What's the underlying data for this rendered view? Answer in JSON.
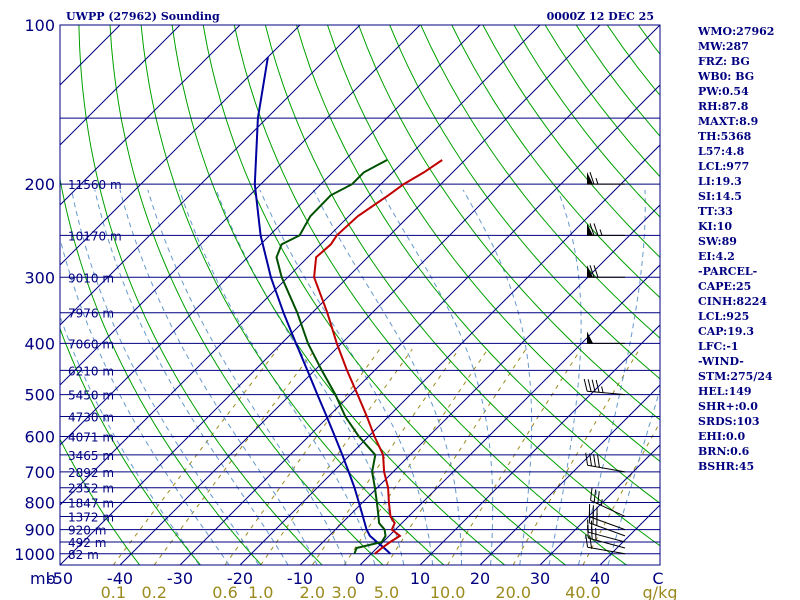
{
  "header": {
    "station_title": "UWPP (27962) Sounding",
    "time_title": "0000Z 12 DEC 25"
  },
  "indices": [
    "WMO:27962",
    "MW:287",
    "FRZ: BG",
    "WB0: BG",
    "PW:0.54",
    "RH:87.8",
    "MAXT:8.9",
    "TH:5368",
    "L57:4.8",
    "LCL:977",
    "LI:19.3",
    "SI:14.5",
    "TT:33",
    "KI:10",
    "SW:89",
    "EI:4.2",
    "-PARCEL-",
    "CAPE:25",
    "CINH:8224",
    "LCL:925",
    "CAP:19.3",
    "LFC:-1",
    "-WIND-",
    "STM:275/24",
    "HEL:149",
    "SHR+:0.0",
    "SRDS:103",
    "EHI:0.0",
    "BRN:0.6",
    "BSHR:45"
  ],
  "colors": {
    "frame": "#000080",
    "isobar": "#000080",
    "isotherm": "#000080",
    "dry_adiabat": "#00a000",
    "moist_adiabat": "#6699cc",
    "mixing_ratio": "#9b8a1e",
    "temperature": "#c00000",
    "dewpoint": "#005000",
    "parcel": "#0000a0",
    "wind_barb": "#000000"
  },
  "chart_data": {
    "type": "skew-t",
    "pressure_unit_label": "mb",
    "pressure_ticks": [
      "100",
      "200",
      "300",
      "400",
      "500",
      "600",
      "700",
      "800",
      "900",
      "1000"
    ],
    "height_labels": [
      {
        "p": 200,
        "label": "11560 m"
      },
      {
        "p": 250,
        "label": "10170 m"
      },
      {
        "p": 300,
        "label": "9010 m"
      },
      {
        "p": 350,
        "label": "7976 m"
      },
      {
        "p": 400,
        "label": "7060 m"
      },
      {
        "p": 450,
        "label": "6210 m"
      },
      {
        "p": 500,
        "label": "5450 m"
      },
      {
        "p": 550,
        "label": "4730 m"
      },
      {
        "p": 600,
        "label": "4071 m"
      },
      {
        "p": 650,
        "label": "3465 m"
      },
      {
        "p": 700,
        "label": "2892 m"
      },
      {
        "p": 750,
        "label": "2352 m"
      },
      {
        "p": 800,
        "label": "1847 m"
      },
      {
        "p": 850,
        "label": "1372 m"
      },
      {
        "p": 900,
        "label": "920 m"
      },
      {
        "p": 950,
        "label": "492 m"
      },
      {
        "p": 1000,
        "label": "82 m"
      }
    ],
    "temperature_ticks": [
      "-50",
      "-40",
      "-30",
      "-20",
      "-10",
      "0",
      "10",
      "20",
      "30",
      "40"
    ],
    "temperature_unit_label": "C",
    "mixing_ratio_ticks": [
      {
        "value": 0.1,
        "label": "0.1"
      },
      {
        "value": 0.2,
        "label": "0.2"
      },
      {
        "value": 0.6,
        "label": "0.6"
      },
      {
        "value": 1.0,
        "label": "1.0"
      },
      {
        "value": 2.0,
        "label": "2.0"
      },
      {
        "value": 3.0,
        "label": "3.0"
      },
      {
        "value": 5.0,
        "label": "5.0"
      },
      {
        "value": 10.0,
        "label": "10.0"
      },
      {
        "value": 20.0,
        "label": "20.0"
      },
      {
        "value": 40.0,
        "label": "40.0"
      }
    ],
    "mixing_ratio_unit_label": "g/kg",
    "p_range": [
      100,
      1050
    ],
    "t_range_at_base": [
      -50,
      50
    ],
    "temperature_profile": [
      {
        "p": 1000,
        "t": 0.6
      },
      {
        "p": 975,
        "t": 0.8
      },
      {
        "p": 950,
        "t": 1.2
      },
      {
        "p": 925,
        "t": 1.8
      },
      {
        "p": 900,
        "t": -0.6
      },
      {
        "p": 875,
        "t": -1.2
      },
      {
        "p": 850,
        "t": -3.0
      },
      {
        "p": 800,
        "t": -5.6
      },
      {
        "p": 750,
        "t": -8.2
      },
      {
        "p": 700,
        "t": -11.5
      },
      {
        "p": 650,
        "t": -14.5
      },
      {
        "p": 600,
        "t": -19.0
      },
      {
        "p": 550,
        "t": -23.6
      },
      {
        "p": 500,
        "t": -28.8
      },
      {
        "p": 450,
        "t": -34.6
      },
      {
        "p": 400,
        "t": -40.8
      },
      {
        "p": 350,
        "t": -47.5
      },
      {
        "p": 300,
        "t": -55.6
      },
      {
        "p": 275,
        "t": -58.6
      },
      {
        "p": 260,
        "t": -58.3
      },
      {
        "p": 250,
        "t": -58.8
      },
      {
        "p": 230,
        "t": -58.5
      },
      {
        "p": 210,
        "t": -56.9
      },
      {
        "p": 200,
        "t": -56.2
      },
      {
        "p": 190,
        "t": -54.8
      },
      {
        "p": 180,
        "t": -53.8
      }
    ],
    "dewpoint_profile": [
      {
        "p": 1000,
        "t": -2.8
      },
      {
        "p": 975,
        "t": -3.4
      },
      {
        "p": 950,
        "t": -0.2
      },
      {
        "p": 925,
        "t": -0.6
      },
      {
        "p": 900,
        "t": -1.8
      },
      {
        "p": 875,
        "t": -3.8
      },
      {
        "p": 850,
        "t": -5.0
      },
      {
        "p": 800,
        "t": -7.6
      },
      {
        "p": 750,
        "t": -10.4
      },
      {
        "p": 700,
        "t": -13.5
      },
      {
        "p": 650,
        "t": -15.8
      },
      {
        "p": 600,
        "t": -21.6
      },
      {
        "p": 550,
        "t": -27.2
      },
      {
        "p": 500,
        "t": -32.5
      },
      {
        "p": 450,
        "t": -38.8
      },
      {
        "p": 400,
        "t": -45.6
      },
      {
        "p": 350,
        "t": -52.5
      },
      {
        "p": 300,
        "t": -61.0
      },
      {
        "p": 275,
        "t": -65.2
      },
      {
        "p": 260,
        "t": -66.5
      },
      {
        "p": 250,
        "t": -65.0
      },
      {
        "p": 230,
        "t": -66.4
      },
      {
        "p": 210,
        "t": -66.5
      },
      {
        "p": 200,
        "t": -64.8
      },
      {
        "p": 190,
        "t": -64.8
      },
      {
        "p": 180,
        "t": -63.0
      }
    ],
    "parcel_profile": [
      {
        "p": 1000,
        "t": 3.2
      },
      {
        "p": 975,
        "t": 1.2
      },
      {
        "p": 950,
        "t": -1.0
      },
      {
        "p": 925,
        "t": -3.2
      },
      {
        "p": 900,
        "t": -4.8
      },
      {
        "p": 850,
        "t": -7.6
      },
      {
        "p": 800,
        "t": -10.6
      },
      {
        "p": 750,
        "t": -13.8
      },
      {
        "p": 700,
        "t": -17.4
      },
      {
        "p": 650,
        "t": -21.3
      },
      {
        "p": 600,
        "t": -25.6
      },
      {
        "p": 550,
        "t": -30.3
      },
      {
        "p": 500,
        "t": -35.5
      },
      {
        "p": 450,
        "t": -41.2
      },
      {
        "p": 400,
        "t": -47.6
      },
      {
        "p": 350,
        "t": -54.8
      },
      {
        "p": 300,
        "t": -62.8
      },
      {
        "p": 250,
        "t": -71.5
      },
      {
        "p": 200,
        "t": -81.0
      },
      {
        "p": 150,
        "t": -91.5
      },
      {
        "p": 115,
        "t": -100.0
      }
    ],
    "wind_barbs": [
      {
        "p": 1000,
        "dir": 280,
        "kt": 20
      },
      {
        "p": 975,
        "dir": 285,
        "kt": 25
      },
      {
        "p": 950,
        "dir": 285,
        "kt": 25
      },
      {
        "p": 925,
        "dir": 290,
        "kt": 30
      },
      {
        "p": 900,
        "dir": 290,
        "kt": 30
      },
      {
        "p": 850,
        "dir": 295,
        "kt": 35
      },
      {
        "p": 700,
        "dir": 280,
        "kt": 40
      },
      {
        "p": 500,
        "dir": 275,
        "kt": 45
      },
      {
        "p": 400,
        "dir": 270,
        "kt": 50
      },
      {
        "p": 300,
        "dir": 270,
        "kt": 70
      },
      {
        "p": 250,
        "dir": 270,
        "kt": 75
      },
      {
        "p": 200,
        "dir": 270,
        "kt": 65
      }
    ]
  }
}
